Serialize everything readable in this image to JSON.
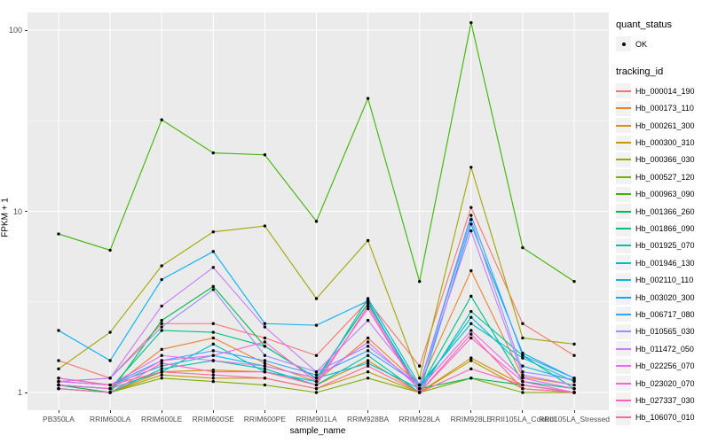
{
  "figure": {
    "y_axis": {
      "label": "FPKM + 1",
      "tick_labels": [
        "1",
        "10",
        "100"
      ]
    },
    "x_axis": {
      "label": "sample_name"
    },
    "legend": {
      "quant_status": {
        "title": "quant_status",
        "items": [
          {
            "label": "OK"
          }
        ]
      },
      "tracking_id": {
        "title": "tracking_id"
      }
    }
  },
  "colors": {
    "panel_bg": "#EBEBEB",
    "grid": "#FFFFFF",
    "legend_key_bg": "#F2F2F2",
    "tick_text": "#4D4D4D",
    "point": "#000000",
    "background": "#FFFFFF"
  },
  "chart_data": {
    "type": "line",
    "xlabel": "sample_name",
    "ylabel": "FPKM + 1",
    "y_scale": "log10",
    "ylim": [
      0.8,
      125
    ],
    "y_major_ticks": [
      1,
      10,
      100
    ],
    "y_minor_ticks": [
      3.162,
      31.62
    ],
    "grid": "white major+minor on gray panel",
    "legend_position": "right",
    "point_marker": "black dot (quant_status OK)",
    "categories": [
      "PB350LA",
      "RRIM600LA",
      "RRIM600LE",
      "RRIM600SE",
      "RRIM600PE",
      "RRIM901LA",
      "RRIM928BA",
      "RRIM928LA",
      "RRIM928LE",
      "RRII105LA_Control",
      "RRII105LA_Stressed"
    ],
    "series": [
      {
        "name": "Hb_000014_190",
        "color": "#F8766D",
        "values": [
          1.5,
          1.2,
          2.4,
          2.4,
          2.0,
          1.6,
          3.2,
          1.4,
          10.5,
          2.4,
          1.6
        ]
      },
      {
        "name": "Hb_000173_110",
        "color": "#EA8331",
        "values": [
          1.1,
          1.05,
          1.73,
          2.0,
          1.45,
          1.15,
          2.0,
          1.1,
          4.7,
          1.22,
          1.1
        ]
      },
      {
        "name": "Hb_000261_300",
        "color": "#D89000",
        "values": [
          1.05,
          1.0,
          1.3,
          1.33,
          1.3,
          1.1,
          1.5,
          1.0,
          1.55,
          1.1,
          1.0
        ]
      },
      {
        "name": "Hb_000300_310",
        "color": "#C09B00",
        "values": [
          1.1,
          1.0,
          1.25,
          1.2,
          1.2,
          1.05,
          1.3,
          1.0,
          1.5,
          1.05,
          1.0
        ]
      },
      {
        "name": "Hb_000366_030",
        "color": "#A3A500",
        "values": [
          1.35,
          2.15,
          5.0,
          7.7,
          8.3,
          3.3,
          6.9,
          1.2,
          17.5,
          2.0,
          1.85
        ]
      },
      {
        "name": "Hb_000527_120",
        "color": "#7CAE00",
        "values": [
          1.05,
          1.0,
          1.2,
          1.15,
          1.1,
          1.0,
          1.2,
          1.0,
          1.2,
          1.0,
          1.0
        ]
      },
      {
        "name": "Hb_000963_090",
        "color": "#39B600",
        "values": [
          7.5,
          6.1,
          32,
          21,
          20.5,
          8.8,
          42,
          4.1,
          110,
          6.3,
          4.1
        ]
      },
      {
        "name": "Hb_001366_260",
        "color": "#00BB4E",
        "values": [
          1.1,
          1.0,
          2.5,
          3.85,
          1.8,
          1.2,
          3.1,
          1.05,
          1.2,
          1.1,
          1.0
        ]
      },
      {
        "name": "Hb_001866_090",
        "color": "#00BF7D",
        "values": [
          1.1,
          1.05,
          2.2,
          2.15,
          1.8,
          1.2,
          3.1,
          1.05,
          3.4,
          1.15,
          1.05
        ]
      },
      {
        "name": "Hb_001925_070",
        "color": "#00C1A7",
        "values": [
          1.05,
          1.0,
          1.35,
          1.5,
          1.35,
          1.1,
          1.6,
          1.0,
          2.8,
          1.6,
          1.05
        ]
      },
      {
        "name": "Hb_001946_130",
        "color": "#00BFC4",
        "values": [
          1.1,
          1.05,
          1.3,
          1.85,
          1.3,
          1.15,
          3.3,
          1.1,
          2.4,
          1.55,
          1.15
        ]
      },
      {
        "name": "Hb_002110_110",
        "color": "#00BAE0",
        "values": [
          1.15,
          1.1,
          1.4,
          1.6,
          1.4,
          1.2,
          1.45,
          1.05,
          2.6,
          1.4,
          1.16
        ]
      },
      {
        "name": "Hb_003020_300",
        "color": "#00B0F6",
        "values": [
          2.2,
          1.5,
          4.2,
          6.0,
          2.4,
          2.35,
          3.2,
          1.0,
          8.5,
          1.65,
          1.2
        ]
      },
      {
        "name": "Hb_006717_080",
        "color": "#35A2FF",
        "values": [
          1.2,
          1.1,
          1.5,
          1.7,
          1.5,
          1.25,
          1.7,
          1.1,
          9.5,
          1.6,
          1.2
        ]
      },
      {
        "name": "Hb_010565_030",
        "color": "#9590FF",
        "values": [
          1.15,
          1.2,
          2.3,
          3.7,
          1.6,
          1.3,
          1.8,
          1.1,
          9.0,
          1.3,
          1.18
        ]
      },
      {
        "name": "Hb_011472_050",
        "color": "#C77CFF",
        "values": [
          1.15,
          1.2,
          3.0,
          4.9,
          2.3,
          1.3,
          2.5,
          1.1,
          7.8,
          1.25,
          1.1
        ]
      },
      {
        "name": "Hb_022256_070",
        "color": "#E76BF3",
        "values": [
          1.15,
          1.1,
          1.6,
          1.5,
          1.4,
          1.2,
          1.9,
          1.05,
          2.2,
          1.2,
          1.05
        ]
      },
      {
        "name": "Hb_023020_070",
        "color": "#FA62DB",
        "values": [
          1.1,
          1.05,
          1.5,
          1.6,
          1.9,
          1.15,
          2.9,
          1.0,
          2.0,
          1.15,
          1.0
        ]
      },
      {
        "name": "Hb_027337_030",
        "color": "#FF62BC",
        "values": [
          1.05,
          1.0,
          1.45,
          1.3,
          1.3,
          1.1,
          3.0,
          1.0,
          1.35,
          1.1,
          1.0
        ]
      },
      {
        "name": "Hb_106070_010",
        "color": "#FF6A98",
        "values": [
          1.2,
          1.1,
          1.3,
          1.25,
          1.2,
          1.05,
          1.4,
          1.0,
          2.1,
          1.05,
          1.0
        ]
      }
    ]
  }
}
